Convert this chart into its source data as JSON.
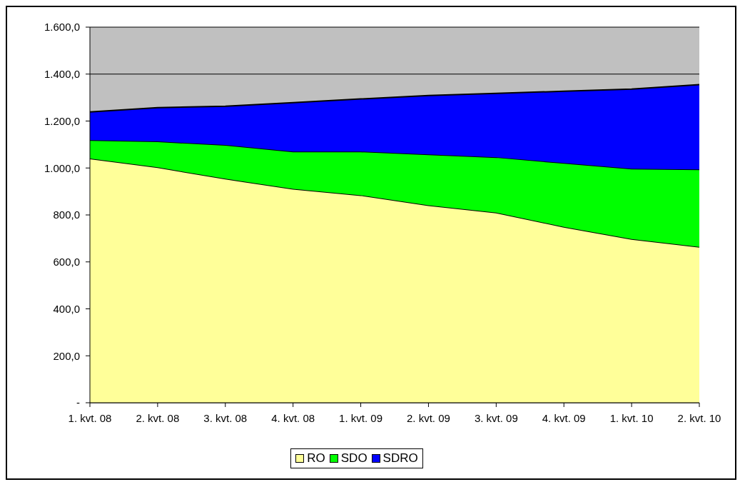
{
  "chart_data": {
    "type": "area",
    "stacked": true,
    "categories": [
      "1. kvt. 08",
      "2. kvt. 08",
      "3. kvt. 08",
      "4. kvt. 08",
      "1. kvt. 09",
      "2. kvt. 09",
      "3. kvt. 09",
      "4. kvt. 09",
      "1. kvt. 10",
      "2. kvt. 10"
    ],
    "series": [
      {
        "name": "RO",
        "color": "#ffff99",
        "values": [
          1040,
          1003,
          954,
          911,
          884,
          841,
          810,
          749,
          697,
          664
        ]
      },
      {
        "name": "SDO",
        "color": "#00ff00",
        "values": [
          79,
          110,
          144,
          159,
          186,
          217,
          236,
          272,
          300,
          330
        ]
      },
      {
        "name": "SDRO",
        "color": "#0000ff",
        "values": [
          120,
          144,
          165,
          208,
          224,
          251,
          272,
          306,
          339,
          361
        ]
      }
    ],
    "ylim": [
      0,
      1600
    ],
    "yticks": [
      {
        "value": 0,
        "label": "-"
      },
      {
        "value": 200,
        "label": "200,0"
      },
      {
        "value": 400,
        "label": "400,0"
      },
      {
        "value": 600,
        "label": "600,0"
      },
      {
        "value": 800,
        "label": "800,0"
      },
      {
        "value": 1000,
        "label": "1.000,0"
      },
      {
        "value": 1200,
        "label": "1.200,0"
      },
      {
        "value": 1400,
        "label": "1.400,0"
      },
      {
        "value": 1600,
        "label": "1.600,0"
      }
    ],
    "grid": "y",
    "legend": "bottom"
  }
}
